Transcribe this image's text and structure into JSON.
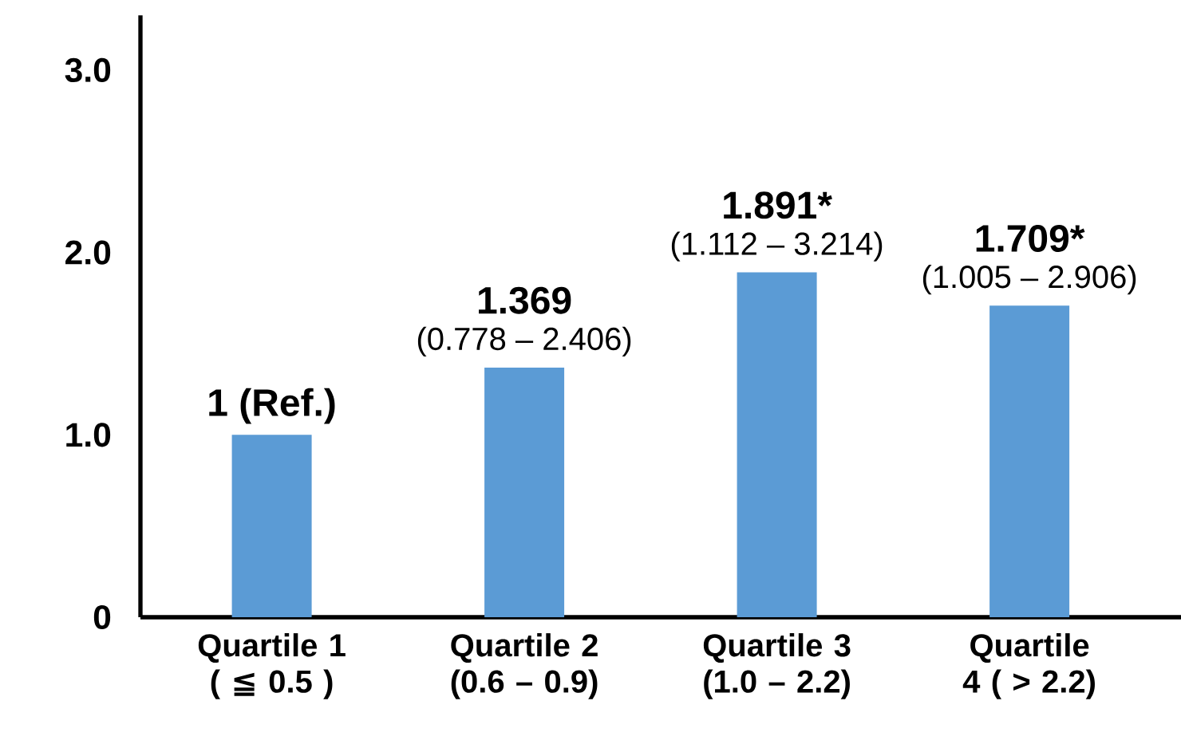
{
  "chart_data": {
    "type": "bar",
    "categories": [
      "Quartile 1 ( ≦ 0.5 )",
      "Quartile 2 (0.6 – 0.9)",
      "Quartile 3 (1.0 – 2.2)",
      "Quartile 4 ( > 2.2)"
    ],
    "values": [
      1,
      1.369,
      1.891,
      1.709
    ],
    "color": "#5b9bd5",
    "value_labels": [
      "1 (Ref.)",
      "1.369",
      "1.891*",
      "1.709*"
    ],
    "annotations": [
      {
        "text": "(0.778 – 2.406)",
        "x": "Quartile 2 (0.6 – 0.9)",
        "y": 1.369
      },
      {
        "text": "(1.112 – 3.214)",
        "x": "Quartile 3 (1.0 – 2.2)",
        "y": 1.891
      },
      {
        "text": "(1.005 – 2.906)",
        "x": "Quartile 4 ( > 2.2)",
        "y": 1.709
      }
    ],
    "ylim": [
      0,
      3.3
    ],
    "yticks": [
      0,
      {
        "value": 1,
        "label": "1.0"
      },
      {
        "value": 2,
        "label": "2.0"
      },
      {
        "value": 3,
        "label": "3.0"
      }
    ],
    "grid": false
  }
}
